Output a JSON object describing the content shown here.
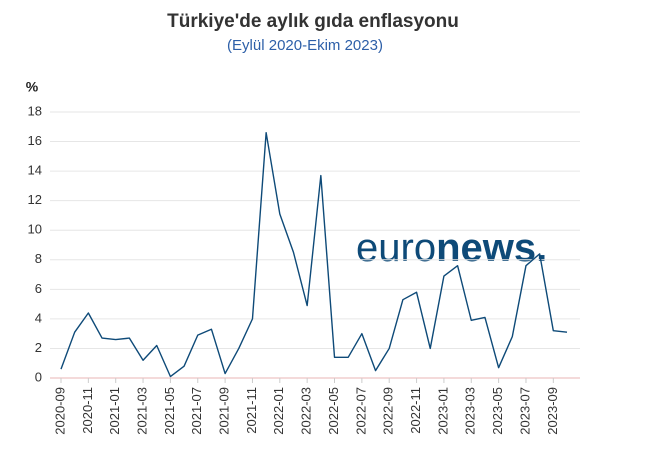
{
  "chart_data": {
    "type": "line",
    "title": "Türkiye'de aylık gıda enflasyonu",
    "subtitle": "(Eylül 2020-Ekim 2023)",
    "y_label": "%",
    "watermark": {
      "light": "euro",
      "bold": "news."
    },
    "categories": [
      "2020-09",
      null,
      "2020-11",
      null,
      "2021-01",
      null,
      "2021-03",
      null,
      "2021-05",
      null,
      "2021-07",
      null,
      "2021-09",
      null,
      "2021-11",
      null,
      "2022-01",
      null,
      "2022-03",
      null,
      "2022-05",
      null,
      "2022-07",
      null,
      "2022-09",
      null,
      "2022-11",
      null,
      "2023-01",
      null,
      "2023-03",
      null,
      "2023-05",
      null,
      "2023-07",
      null,
      "2023-09",
      null
    ],
    "series": [
      {
        "name": "Aylık gıda enflasyonu",
        "color": "#0e4a78",
        "values": [
          0.6,
          3.1,
          4.4,
          2.7,
          2.6,
          2.7,
          1.2,
          2.2,
          0.1,
          0.8,
          2.9,
          3.3,
          0.3,
          2.0,
          4.0,
          16.6,
          11.1,
          8.5,
          4.9,
          13.7,
          1.4,
          1.4,
          3.0,
          0.5,
          2.0,
          5.3,
          5.8,
          2.0,
          6.9,
          7.6,
          3.9,
          4.1,
          0.7,
          2.8,
          7.6,
          8.4,
          3.2,
          3.1
        ]
      }
    ],
    "ylim": [
      0,
      18
    ],
    "yticks": [
      0,
      2,
      4,
      6,
      8,
      10,
      12,
      14,
      16,
      18
    ],
    "grid": true
  }
}
